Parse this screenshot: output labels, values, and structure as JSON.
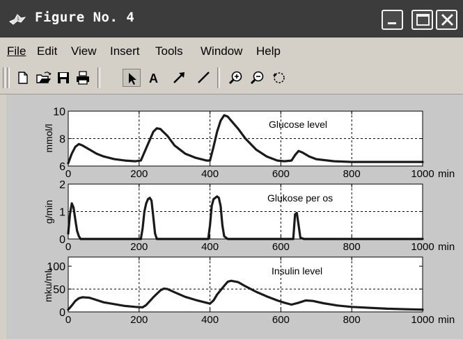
{
  "window": {
    "title": "Figure No. 4"
  },
  "menu": [
    {
      "name": "file",
      "label": "File"
    },
    {
      "name": "edit",
      "label": "Edit"
    },
    {
      "name": "view",
      "label": "View"
    },
    {
      "name": "insert",
      "label": "Insert"
    },
    {
      "name": "tools",
      "label": "Tools"
    },
    {
      "name": "window",
      "label": "Window"
    },
    {
      "name": "help",
      "label": "Help"
    }
  ],
  "toolbar": {
    "tools": [
      "new-file-icon",
      "open-folder-icon",
      "save-icon",
      "print-icon",
      "select-arrow-icon",
      "text-icon",
      "arrow-icon",
      "line-icon",
      "zoom-in-icon",
      "zoom-out-icon",
      "rotate-icon"
    ],
    "pressed": "select-arrow-icon",
    "text_tool_glyph": "A"
  },
  "colors": {
    "titlebar": "#3c3c3c",
    "figure_bg": "#c8c8c8",
    "axes_bg": "#ffffff",
    "line": "#1a1a1a"
  },
  "chart_data": [
    {
      "type": "line",
      "title": "Glucose level",
      "ylabel": "mmol/l",
      "xlim": [
        0,
        1000
      ],
      "ylim": [
        6,
        10
      ],
      "x_ticks": [
        "0",
        "200",
        "400",
        "600",
        "800",
        "1000"
      ],
      "x_unit": "min",
      "y_ticks": [
        "6",
        "8",
        "10"
      ],
      "y_tick_values": [
        6,
        8,
        10
      ],
      "grid": true,
      "x": [
        0,
        10,
        20,
        30,
        40,
        60,
        80,
        100,
        130,
        160,
        190,
        205,
        215,
        230,
        240,
        250,
        260,
        280,
        300,
        330,
        360,
        390,
        400,
        410,
        420,
        430,
        440,
        450,
        460,
        480,
        500,
        530,
        560,
        590,
        610,
        630,
        640,
        650,
        660,
        680,
        700,
        750,
        800,
        900,
        1000
      ],
      "values": [
        6.2,
        6.9,
        7.4,
        7.6,
        7.5,
        7.2,
        6.9,
        6.7,
        6.5,
        6.4,
        6.35,
        6.4,
        7.0,
        7.9,
        8.5,
        8.75,
        8.7,
        8.2,
        7.5,
        6.9,
        6.6,
        6.4,
        6.4,
        7.4,
        8.5,
        9.3,
        9.7,
        9.6,
        9.3,
        8.7,
        8.0,
        7.2,
        6.7,
        6.4,
        6.35,
        6.4,
        6.8,
        7.1,
        7.0,
        6.7,
        6.5,
        6.35,
        6.3,
        6.3,
        6.3
      ]
    },
    {
      "type": "line",
      "title": "Glukose per os",
      "ylabel": "g/min",
      "xlim": [
        0,
        1000
      ],
      "ylim": [
        0,
        2
      ],
      "x_ticks": [
        "0",
        "200",
        "400",
        "600",
        "800",
        "1000"
      ],
      "x_unit": "min",
      "y_ticks": [
        "0",
        "1",
        "2"
      ],
      "y_tick_values": [
        0,
        1,
        2
      ],
      "grid": true,
      "x": [
        0,
        5,
        10,
        15,
        20,
        25,
        30,
        35,
        45,
        205,
        210,
        215,
        220,
        225,
        230,
        235,
        240,
        245,
        250,
        260,
        395,
        400,
        405,
        410,
        415,
        420,
        425,
        430,
        435,
        440,
        450,
        635,
        640,
        645,
        650,
        655,
        665,
        1000
      ],
      "values": [
        0.2,
        0.9,
        1.3,
        1.15,
        0.7,
        0.3,
        0.1,
        0.0,
        0.0,
        0.0,
        0.4,
        1.0,
        1.3,
        1.45,
        1.5,
        1.4,
        0.8,
        0.2,
        0.0,
        0.0,
        0.0,
        0.5,
        1.2,
        1.45,
        1.5,
        1.55,
        1.5,
        1.2,
        0.5,
        0.1,
        0.0,
        0.0,
        0.9,
        0.95,
        0.5,
        0.05,
        0.0,
        0.0
      ]
    },
    {
      "type": "line",
      "title": "Insulin level",
      "ylabel": "mku/mL",
      "xlim": [
        0,
        1000
      ],
      "ylim": [
        0,
        120
      ],
      "x_ticks": [
        "0",
        "200",
        "400",
        "600",
        "800",
        "1000"
      ],
      "x_unit": "min",
      "y_ticks": [
        "0",
        "50",
        "100"
      ],
      "y_tick_values": [
        0,
        50,
        100
      ],
      "grid": true,
      "x": [
        0,
        10,
        20,
        30,
        40,
        60,
        80,
        100,
        130,
        160,
        190,
        210,
        220,
        240,
        260,
        270,
        280,
        300,
        330,
        360,
        390,
        400,
        410,
        420,
        440,
        450,
        460,
        480,
        500,
        530,
        560,
        590,
        610,
        630,
        650,
        670,
        690,
        720,
        760,
        800,
        850,
        900,
        950,
        1000
      ],
      "values": [
        5,
        14,
        24,
        30,
        32,
        31,
        26,
        21,
        17,
        13,
        11,
        10,
        15,
        32,
        47,
        51,
        50,
        43,
        33,
        26,
        20,
        18,
        25,
        38,
        57,
        66,
        68,
        65,
        56,
        44,
        34,
        25,
        20,
        16,
        20,
        25,
        24,
        19,
        14,
        11,
        9,
        7,
        6,
        5
      ]
    }
  ]
}
